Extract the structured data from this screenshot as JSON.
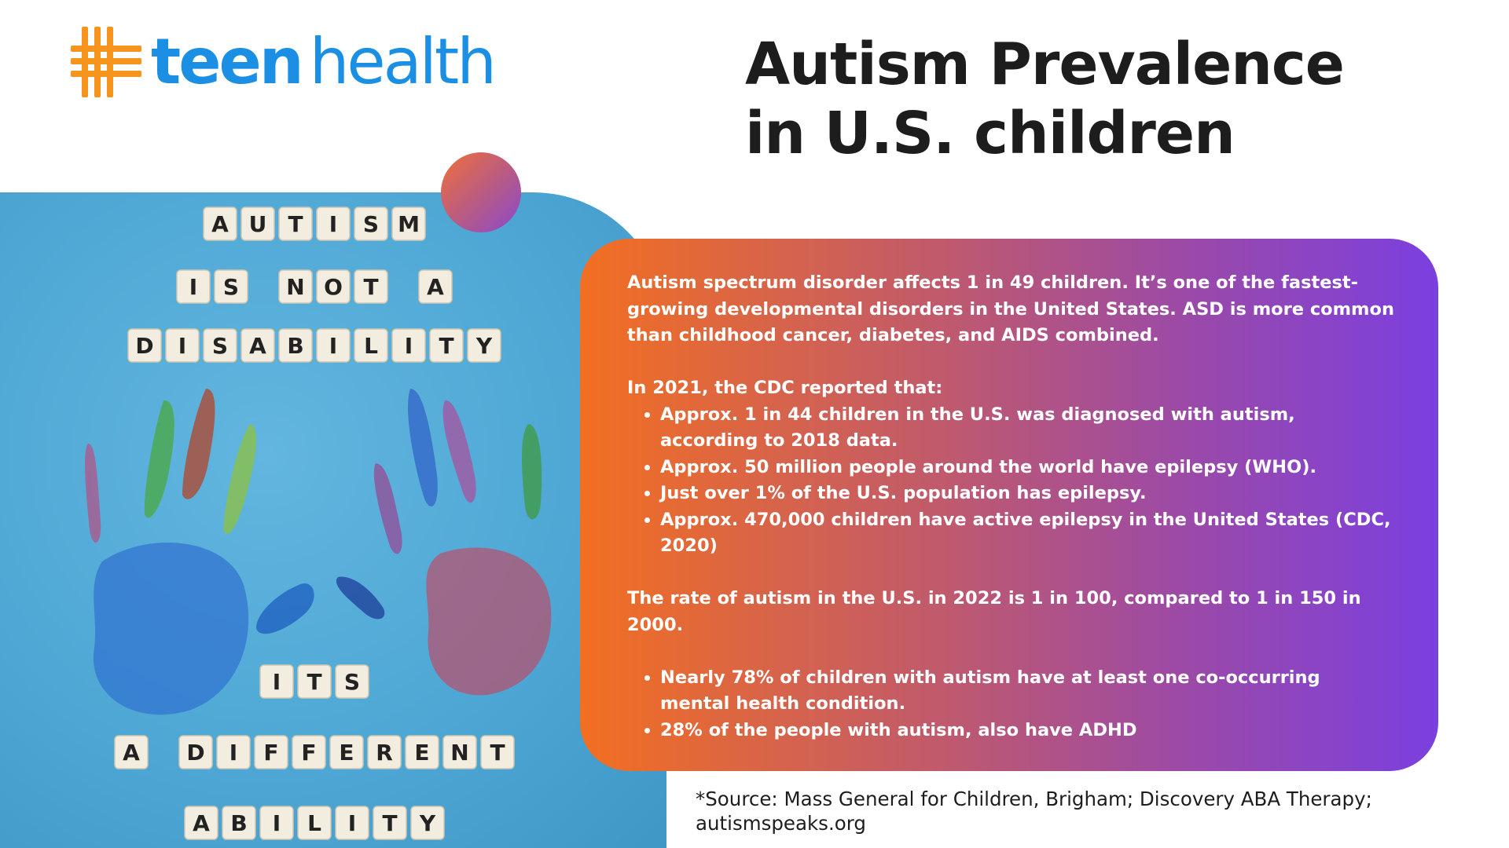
{
  "brand": {
    "logo_part1": "teen",
    "logo_part2": "health",
    "orange": "#f7941d",
    "blue": "#1a8fe3"
  },
  "title": {
    "line1": "Autism Prevalence",
    "line2": "in U.S. children"
  },
  "photo": {
    "tile_lines": [
      "AUTISM",
      "IS NOT A",
      "DISABILITY",
      "ITS",
      "A DIFFERENT",
      "ABILITY"
    ],
    "background": "#4ea7d4"
  },
  "card": {
    "intro": "Autism spectrum disorder affects 1 in 49 children. It’s one of the fastest-growing developmental disorders in the United States. ASD is more common than childhood cancer, diabetes, and AIDS combined.",
    "cdc_heading": "In 2021, the CDC reported that:",
    "cdc_points": [
      "Approx. 1 in 44 children in the U.S. was diagnosed with autism, according to 2018 data.",
      "Approx. 50 million people around the world have epilepsy (WHO).",
      "Just over 1% of the U.S. population has epilepsy.",
      "Approx. 470,000 children have active epilepsy in the United States (CDC, 2020)"
    ],
    "rate_text": "The rate of autism in the U.S. in 2022 is 1 in 100, compared to 1 in 150 in 2000.",
    "extra_points": [
      "Nearly 78% of children with autism have at least one co-occurring mental health condition.",
      "28% of the people with autism, also have ADHD"
    ],
    "gradient_start": "#f26f21",
    "gradient_end": "#7b3fe0"
  },
  "source": {
    "line1": "*Source:  Mass General for Children, Brigham; Discovery ABA Therapy;",
    "line2": "autismspeaks.org"
  }
}
